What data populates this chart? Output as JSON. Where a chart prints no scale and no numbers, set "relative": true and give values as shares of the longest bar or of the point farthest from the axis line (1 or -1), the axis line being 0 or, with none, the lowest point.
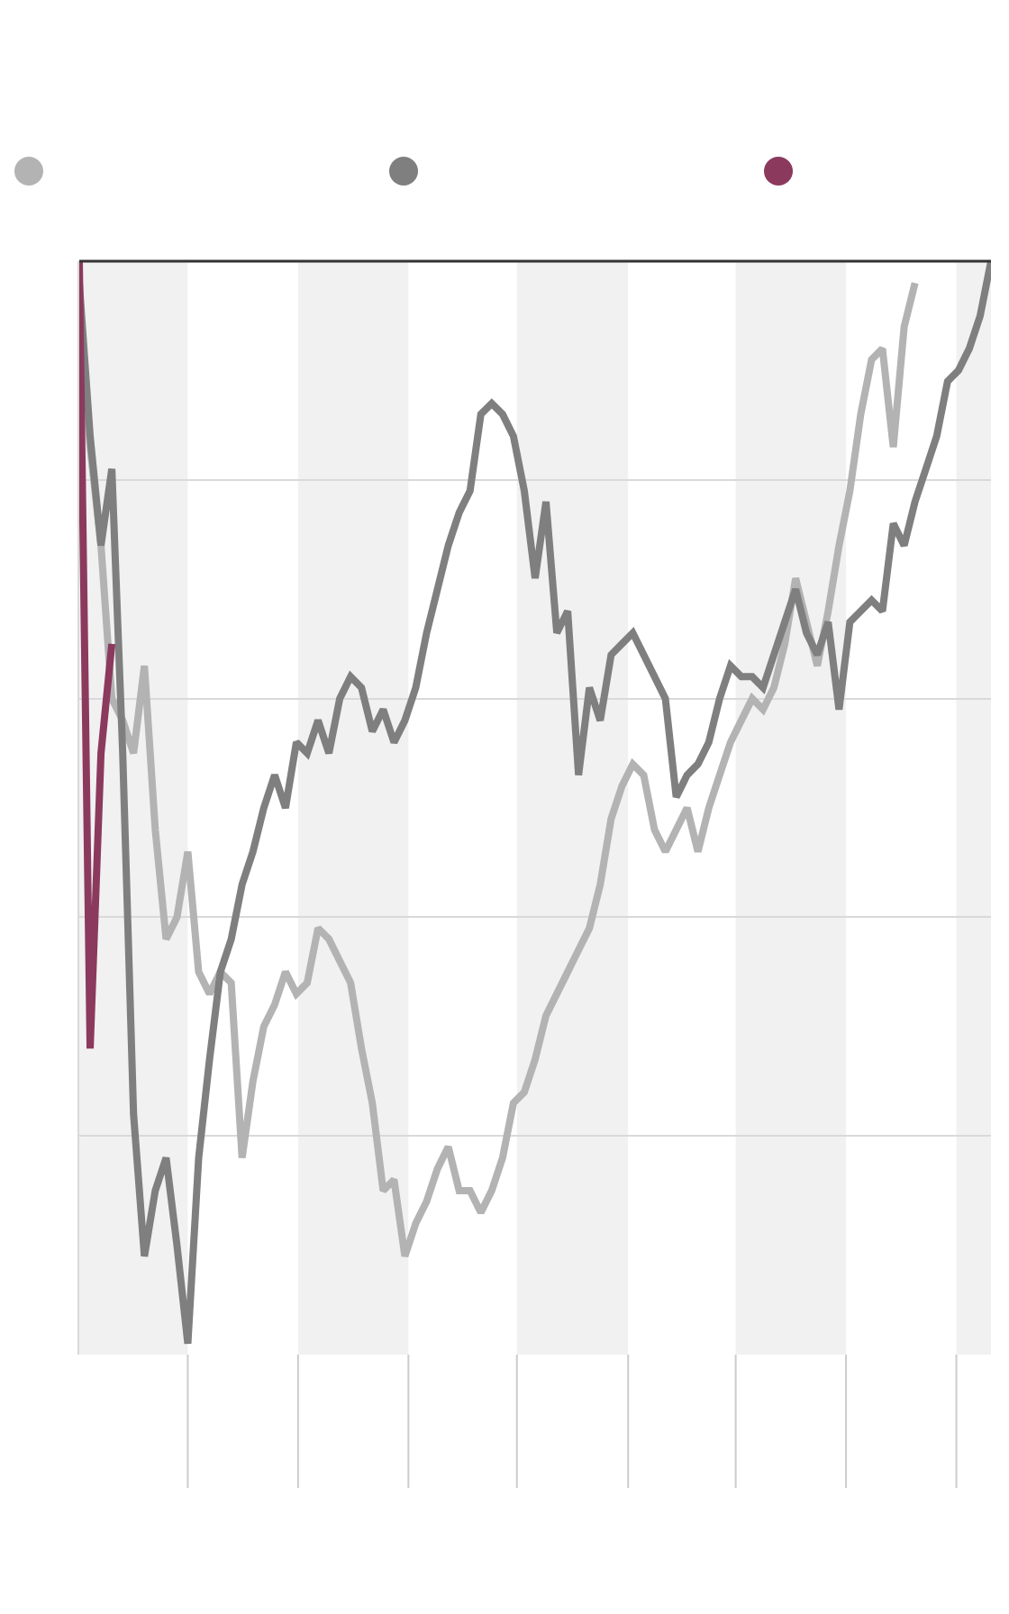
{
  "chart_data": {
    "type": "line",
    "relative": true,
    "grid": "y",
    "marker": "none",
    "line_style": "solid",
    "categories": [
      null,
      null,
      null,
      null,
      null,
      null,
      null,
      null,
      null,
      null,
      null,
      null,
      null,
      null,
      null,
      null,
      null,
      null,
      null,
      null,
      null,
      null,
      null,
      null,
      null,
      null,
      null,
      null,
      null,
      null,
      null,
      null,
      null,
      null,
      null,
      null,
      null,
      null,
      null,
      null,
      null,
      null,
      null,
      null,
      null,
      null,
      null,
      null,
      null,
      null,
      null,
      null,
      null,
      null,
      null,
      null,
      null,
      null,
      null,
      null,
      null,
      null,
      null,
      null,
      null,
      null,
      null,
      null,
      null,
      null,
      null,
      null,
      null,
      null,
      null,
      null,
      null,
      null,
      null,
      null,
      null,
      null,
      null,
      null,
      null
    ],
    "series": [
      {
        "color": "#b3b3b3",
        "values": [
          0.96,
          0.83,
          0.74,
          0.6,
          0.58,
          0.55,
          0.63,
          0.48,
          0.38,
          0.4,
          0.46,
          0.35,
          0.33,
          0.35,
          0.34,
          0.18,
          0.25,
          0.3,
          0.32,
          0.35,
          0.33,
          0.34,
          0.39,
          0.38,
          0.36,
          0.34,
          0.28,
          0.23,
          0.15,
          0.16,
          0.09,
          0.12,
          0.14,
          0.17,
          0.19,
          0.15,
          0.15,
          0.13,
          0.15,
          0.18,
          0.23,
          0.24,
          0.27,
          0.31,
          0.33,
          0.35,
          0.37,
          0.39,
          0.43,
          0.49,
          0.52,
          0.54,
          0.53,
          0.48,
          0.46,
          0.48,
          0.5,
          0.46,
          0.5,
          0.53,
          0.56,
          0.58,
          0.6,
          0.59,
          0.61,
          0.65,
          0.71,
          0.67,
          0.63,
          0.68,
          0.74,
          0.79,
          0.86,
          0.91,
          0.92,
          0.83,
          0.94,
          0.98,
          null,
          null,
          null,
          null,
          null,
          null,
          null
        ]
      },
      {
        "color": "#7f7f7f",
        "values": [
          0.98,
          0.84,
          0.74,
          0.81,
          0.55,
          0.22,
          0.09,
          0.15,
          0.18,
          0.1,
          0.01,
          0.18,
          0.27,
          0.35,
          0.38,
          0.43,
          0.46,
          0.5,
          0.53,
          0.5,
          0.56,
          0.55,
          0.58,
          0.55,
          0.6,
          0.62,
          0.61,
          0.57,
          0.59,
          0.56,
          0.58,
          0.61,
          0.66,
          0.7,
          0.74,
          0.77,
          0.79,
          0.86,
          0.87,
          0.86,
          0.84,
          0.79,
          0.71,
          0.78,
          0.66,
          0.68,
          0.53,
          0.61,
          0.58,
          0.64,
          0.65,
          0.66,
          0.64,
          0.62,
          0.6,
          0.51,
          0.53,
          0.54,
          0.56,
          0.6,
          0.63,
          0.62,
          0.62,
          0.61,
          0.64,
          0.67,
          0.7,
          0.66,
          0.64,
          0.67,
          0.59,
          0.67,
          0.68,
          0.69,
          0.68,
          0.76,
          0.74,
          0.78,
          0.81,
          0.84,
          0.89,
          0.9,
          0.92,
          0.95,
          1.0
        ]
      },
      {
        "color": "#8b3a5e",
        "values": [
          1.0,
          0.28,
          0.55,
          0.65,
          null,
          null,
          null,
          null,
          null,
          null,
          null,
          null,
          null,
          null,
          null,
          null,
          null,
          null,
          null,
          null,
          null,
          null,
          null,
          null,
          null,
          null,
          null,
          null,
          null,
          null,
          null,
          null,
          null,
          null,
          null,
          null,
          null,
          null,
          null,
          null,
          null,
          null,
          null,
          null,
          null,
          null,
          null,
          null,
          null,
          null,
          null,
          null,
          null,
          null,
          null,
          null,
          null,
          null,
          null,
          null,
          null,
          null,
          null,
          null,
          null,
          null,
          null,
          null,
          null,
          null,
          null,
          null,
          null,
          null,
          null,
          null,
          null,
          null,
          null,
          null,
          null,
          null,
          null,
          null,
          null
        ]
      }
    ]
  }
}
